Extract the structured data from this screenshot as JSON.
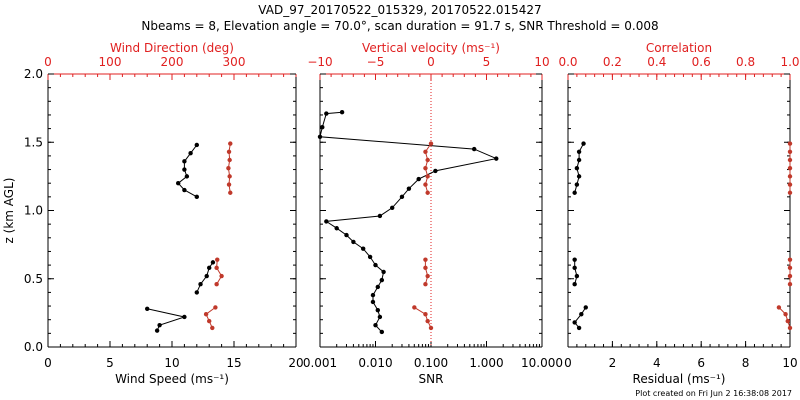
{
  "title": "VAD_97_20170522_015329, 20170522.015427",
  "subtitle": "Nbeams = 8, Elevation angle = 70.0°, scan duration = 91.7 s, SNR Threshold = 0.008",
  "footer": "Plot created on Fri Jun  2 16:38:08 2017",
  "colors": {
    "primary": "#000000",
    "secondary": "#c0392b",
    "top_axis": "#e02020"
  },
  "chart_data": [
    {
      "type": "line",
      "name": "wind",
      "xlabel": "Wind Speed (ms⁻¹)",
      "top_xlabel": "Wind Direction (deg)",
      "ylabel": "z (km AGL)",
      "xlim": [
        0,
        20
      ],
      "top_xlim": [
        0,
        400
      ],
      "ylim": [
        0,
        2
      ],
      "xticks": [
        0,
        5,
        10,
        15,
        20
      ],
      "top_xticks": [
        0,
        100,
        200,
        300
      ],
      "yticks": [
        0.0,
        0.5,
        1.0,
        1.5,
        2.0
      ],
      "series": [
        {
          "axis": "bottom",
          "color": "#000000",
          "segments": [
            [
              [
                8.0,
                0.28
              ],
              [
                11.0,
                0.22
              ],
              [
                9.0,
                0.16
              ],
              [
                8.8,
                0.12
              ]
            ],
            [
              [
                13.3,
                0.62
              ],
              [
                13.0,
                0.58
              ],
              [
                12.8,
                0.52
              ],
              [
                12.3,
                0.46
              ],
              [
                12.0,
                0.4
              ]
            ],
            [
              [
                12.0,
                1.48
              ],
              [
                11.5,
                1.42
              ],
              [
                11.0,
                1.36
              ],
              [
                11.0,
                1.3
              ],
              [
                11.2,
                1.25
              ],
              [
                10.5,
                1.2
              ],
              [
                11.0,
                1.15
              ],
              [
                12.0,
                1.1
              ]
            ]
          ]
        },
        {
          "axis": "top",
          "color": "#c0392b",
          "segments": [
            [
              [
                270,
                0.29
              ],
              [
                255,
                0.24
              ],
              [
                260,
                0.19
              ],
              [
                265,
                0.14
              ]
            ],
            [
              [
                273,
                0.64
              ],
              [
                272,
                0.58
              ],
              [
                280,
                0.52
              ],
              [
                272,
                0.46
              ]
            ],
            [
              [
                294,
                1.49
              ],
              [
                292,
                1.43
              ],
              [
                293,
                1.37
              ],
              [
                291,
                1.31
              ],
              [
                293,
                1.25
              ],
              [
                292,
                1.19
              ],
              [
                294,
                1.13
              ]
            ]
          ]
        }
      ]
    },
    {
      "type": "line",
      "name": "snr",
      "xlabel": "SNR",
      "top_xlabel": "Vertical velocity (ms⁻¹)",
      "xscale": "log",
      "xlim": [
        0.001,
        10
      ],
      "top_xlim": [
        -10,
        10
      ],
      "ylim": [
        0,
        2
      ],
      "xticks": [
        0.001,
        0.01,
        0.1,
        1,
        10
      ],
      "xticklabels": [
        "0.001",
        "0.010",
        "0.100",
        "1.000",
        "10.000"
      ],
      "top_xticks": [
        -10,
        -5,
        0,
        5,
        10
      ],
      "top_xticklabels": [
        "−10",
        "−5",
        "0",
        "5",
        "10"
      ],
      "zero_line": {
        "axis": "top",
        "value": 0
      },
      "series": [
        {
          "axis": "bottom",
          "color": "#000000",
          "segments": [
            [
              [
                0.0025,
                1.72
              ],
              [
                0.0013,
                1.71
              ],
              [
                0.0011,
                1.61
              ],
              [
                0.001,
                1.54
              ],
              [
                0.6,
                1.45
              ],
              [
                1.5,
                1.38
              ],
              [
                0.12,
                1.29
              ],
              [
                0.06,
                1.23
              ],
              [
                0.04,
                1.16
              ],
              [
                0.03,
                1.1
              ],
              [
                0.02,
                1.02
              ],
              [
                0.012,
                0.96
              ],
              [
                0.0013,
                0.92
              ],
              [
                0.002,
                0.87
              ],
              [
                0.003,
                0.82
              ],
              [
                0.004,
                0.77
              ],
              [
                0.006,
                0.72
              ],
              [
                0.008,
                0.66
              ],
              [
                0.01,
                0.6
              ],
              [
                0.014,
                0.55
              ],
              [
                0.013,
                0.49
              ],
              [
                0.011,
                0.44
              ],
              [
                0.009,
                0.38
              ],
              [
                0.009,
                0.33
              ],
              [
                0.011,
                0.27
              ],
              [
                0.012,
                0.22
              ],
              [
                0.01,
                0.16
              ],
              [
                0.013,
                0.11
              ]
            ]
          ]
        },
        {
          "axis": "top",
          "color": "#c0392b",
          "segments": [
            [
              [
                -1.5,
                0.29
              ],
              [
                -0.5,
                0.24
              ],
              [
                -0.3,
                0.19
              ],
              [
                0,
                0.14
              ]
            ],
            [
              [
                -0.5,
                0.64
              ],
              [
                -0.5,
                0.58
              ],
              [
                -0.3,
                0.52
              ],
              [
                -0.5,
                0.46
              ]
            ],
            [
              [
                0,
                1.49
              ],
              [
                -0.5,
                1.43
              ],
              [
                -0.3,
                1.37
              ],
              [
                -0.5,
                1.31
              ],
              [
                -0.3,
                1.25
              ],
              [
                -0.5,
                1.19
              ],
              [
                -0.3,
                1.13
              ]
            ]
          ]
        }
      ]
    },
    {
      "type": "line",
      "name": "residual",
      "xlabel": "Residual (ms⁻¹)",
      "top_xlabel": "Correlation",
      "xlim": [
        0,
        10
      ],
      "top_xlim": [
        0,
        1.0
      ],
      "ylim": [
        0,
        2
      ],
      "xticks": [
        0,
        2,
        4,
        6,
        8,
        10
      ],
      "top_xticks": [
        0.0,
        0.2,
        0.4,
        0.6,
        0.8,
        1.0
      ],
      "top_xticklabels": [
        "0.0",
        "0.2",
        "0.4",
        "0.6",
        "0.8",
        "1.0"
      ],
      "series": [
        {
          "axis": "bottom",
          "color": "#000000",
          "segments": [
            [
              [
                0.8,
                0.29
              ],
              [
                0.6,
                0.24
              ],
              [
                0.3,
                0.18
              ],
              [
                0.5,
                0.14
              ]
            ],
            [
              [
                0.3,
                0.64
              ],
              [
                0.3,
                0.58
              ],
              [
                0.4,
                0.52
              ],
              [
                0.3,
                0.46
              ]
            ],
            [
              [
                0.7,
                1.49
              ],
              [
                0.5,
                1.43
              ],
              [
                0.5,
                1.37
              ],
              [
                0.4,
                1.31
              ],
              [
                0.5,
                1.25
              ],
              [
                0.4,
                1.19
              ],
              [
                0.3,
                1.13
              ]
            ]
          ]
        },
        {
          "axis": "top",
          "color": "#c0392b",
          "segments": [
            [
              [
                0.95,
                0.29
              ],
              [
                0.98,
                0.24
              ],
              [
                0.99,
                0.19
              ],
              [
                1.0,
                0.14
              ]
            ],
            [
              [
                1.0,
                0.64
              ],
              [
                1.0,
                0.58
              ],
              [
                1.0,
                0.52
              ],
              [
                1.0,
                0.46
              ]
            ],
            [
              [
                1.0,
                1.49
              ],
              [
                1.0,
                1.43
              ],
              [
                1.0,
                1.37
              ],
              [
                1.0,
                1.31
              ],
              [
                1.0,
                1.25
              ],
              [
                1.0,
                1.19
              ],
              [
                1.0,
                1.13
              ]
            ]
          ]
        }
      ]
    }
  ]
}
